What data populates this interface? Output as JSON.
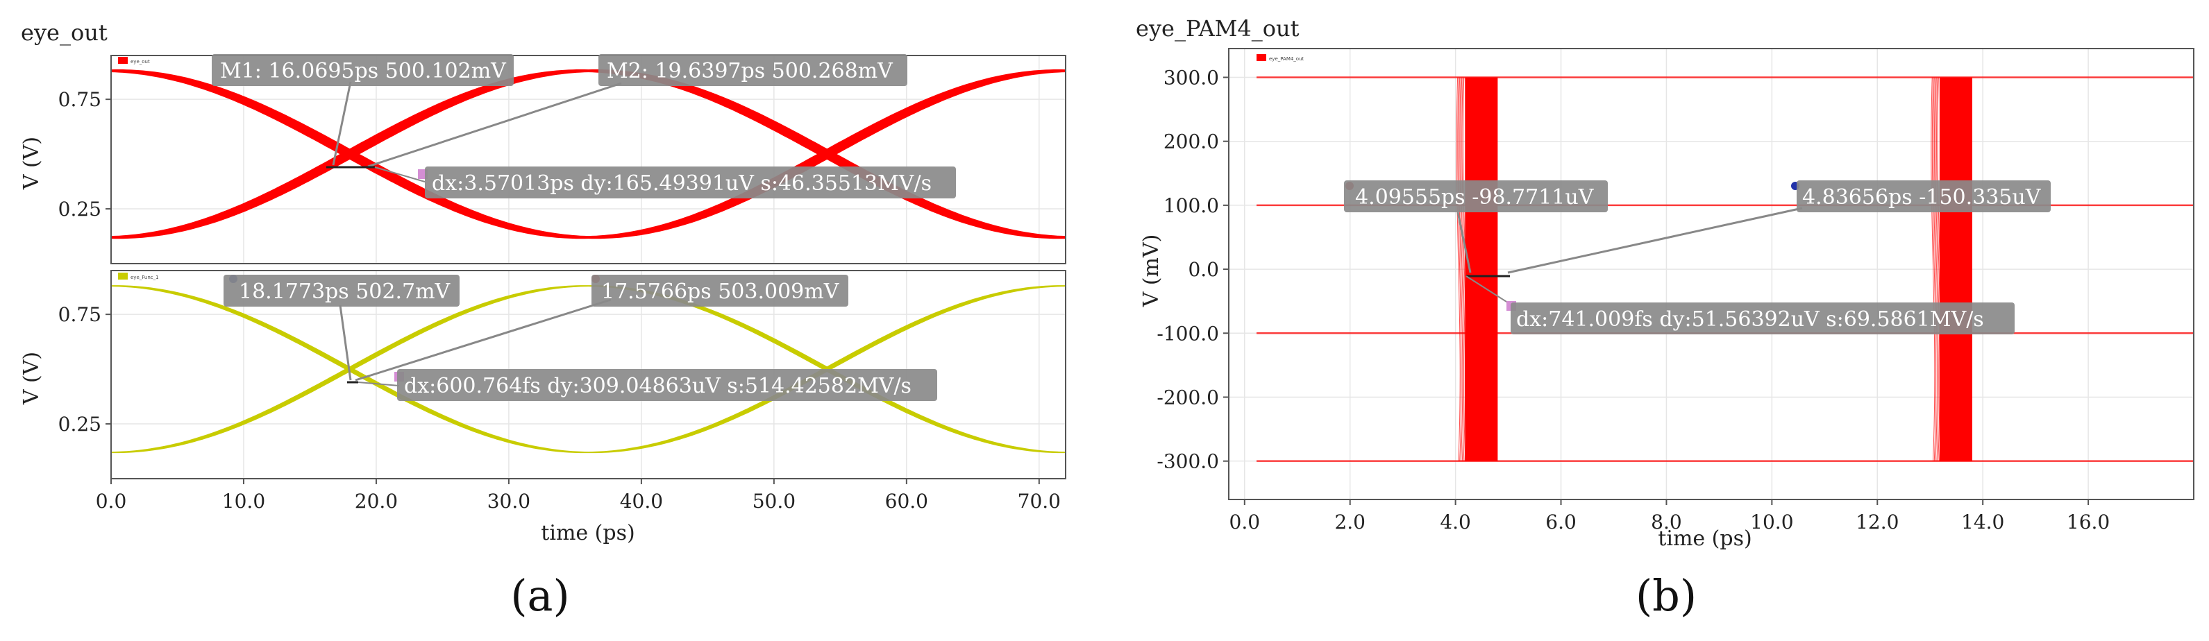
{
  "colors": {
    "red": "#ff0000",
    "yellow": "#c8cc00",
    "annotation_bg": "#8a8a8a"
  },
  "panel_labels": {
    "a": "(a)",
    "b": "(b)"
  },
  "chart_data": [
    {
      "id": "a_top",
      "type": "line",
      "title": "eye_out",
      "legend_label": "eye_out",
      "ylabel": "V (V)",
      "xlabel": "",
      "xlim": [
        0,
        72
      ],
      "ylim": [
        0.0,
        0.95
      ],
      "xticks": [
        0,
        10,
        20,
        30,
        40,
        50,
        60,
        70
      ],
      "xtick_labels": [
        "",
        "",
        "",
        "",
        "",
        "",
        "",
        ""
      ],
      "yticks": [
        0.25,
        0.75
      ],
      "ytick_labels": [
        "0.25",
        "0.75"
      ],
      "eye": {
        "period_ps": 36,
        "crossing_ps": 18,
        "low_v": 0.12,
        "high_v": 0.88,
        "thickness_v": 0.05,
        "color_key": "red"
      },
      "annotations": [
        {
          "label": "M1: 16.0695ps 500.102mV",
          "x": 16.0695,
          "y": 0.500102
        },
        {
          "label": "M2: 19.6397ps 500.268mV",
          "x": 19.6397,
          "y": 0.500268
        },
        {
          "label": "dx:3.57013ps dy:165.49391uV s:46.35513MV/s"
        }
      ]
    },
    {
      "id": "a_bottom",
      "type": "line",
      "title": "",
      "legend_label": "eye_Func_1",
      "ylabel": "V (V)",
      "xlabel": "time (ps)",
      "xlim": [
        0,
        72
      ],
      "ylim": [
        0.0,
        0.95
      ],
      "xticks": [
        0,
        10,
        20,
        30,
        40,
        50,
        60,
        70
      ],
      "xtick_labels": [
        "0.0",
        "10.0",
        "20.0",
        "30.0",
        "40.0",
        "50.0",
        "60.0",
        "70.0"
      ],
      "yticks": [
        0.25,
        0.75
      ],
      "ytick_labels": [
        "0.25",
        "0.75"
      ],
      "eye": {
        "period_ps": 36,
        "crossing_ps": 18,
        "low_v": 0.12,
        "high_v": 0.88,
        "thickness_v": 0.025,
        "color_key": "yellow"
      },
      "annotations": [
        {
          "label": "18.1773ps 502.7mV",
          "x": 18.1773,
          "y": 0.5027
        },
        {
          "label": "17.5766ps 503.009mV",
          "x": 17.5766,
          "y": 0.503009
        },
        {
          "label": "dx:600.764fs dy:309.04863uV s:514.42582MV/s"
        }
      ]
    },
    {
      "id": "b",
      "type": "line",
      "title": "eye_PAM4_out",
      "legend_label": "eye_PAM4_out",
      "ylabel": "V (mV)",
      "xlabel": "time (ps)",
      "xlim": [
        -0.3,
        18
      ],
      "ylim": [
        -360,
        345
      ],
      "xticks": [
        0,
        2,
        4,
        6,
        8,
        10,
        12,
        14,
        16
      ],
      "xtick_labels": [
        "0.0",
        "2.0",
        "4.0",
        "6.0",
        "8.0",
        "10.0",
        "12.0",
        "14.0",
        "16.0"
      ],
      "yticks": [
        300,
        200,
        100,
        0,
        -100,
        -200,
        -300
      ],
      "ytick_labels": [
        "300.0",
        "200.0",
        "100.0",
        "0.0",
        "-100.0",
        "-200.0",
        "-300.0"
      ],
      "levels_mv": [
        300,
        100,
        -100,
        -300
      ],
      "transitions_ps": [
        4.4,
        13.4
      ],
      "transition_width_ps": 0.8,
      "annotations": [
        {
          "label": "4.09555ps -98.7711uV",
          "x": 4.09555,
          "y": -0.0987711
        },
        {
          "label": "4.83656ps -150.335uV",
          "x": 4.83656,
          "y": -0.150335
        },
        {
          "label": "dx:741.009fs dy:51.56392uV s:69.5861MV/s"
        }
      ]
    }
  ]
}
